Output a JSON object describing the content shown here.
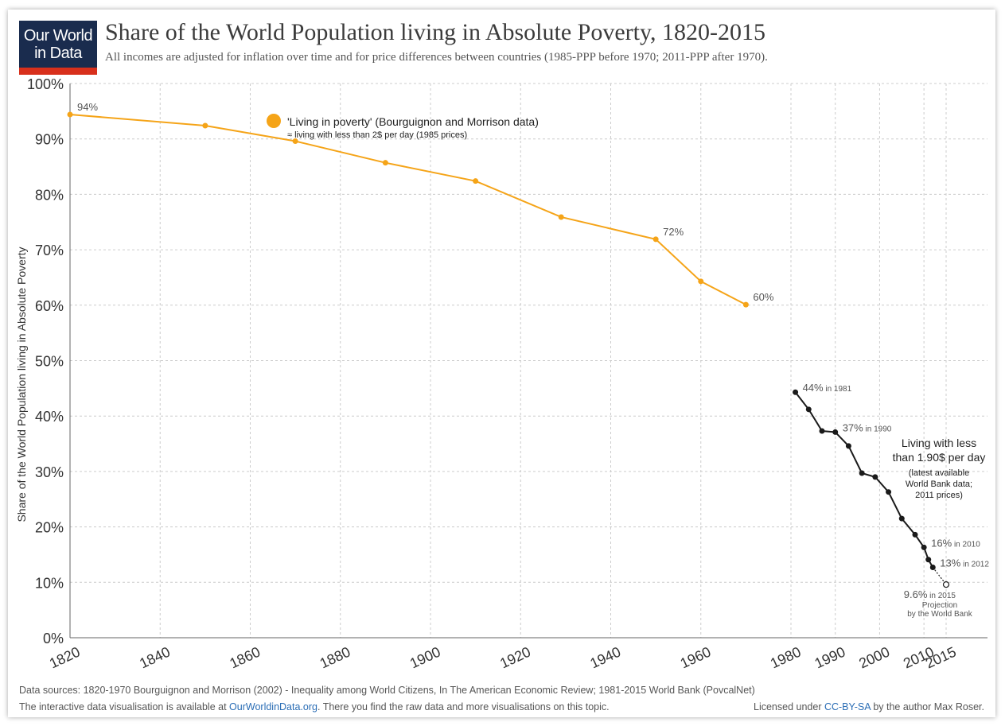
{
  "logo": {
    "line1": "Our World",
    "line2": "in Data"
  },
  "header": {
    "title": "Share of the World Population living in Absolute Poverty, 1820-2015",
    "subtitle": "All incomes are adjusted for inflation over time and for price differences between countries (1985-PPP before 1970; 2011-PPP after 1970)."
  },
  "colors": {
    "series1": "#f5a418",
    "series2": "#1a1a1a",
    "grid": "#cccccc",
    "link": "#2a6db5",
    "logo_bg": "#1a2c4e",
    "logo_bar": "#d8301c"
  },
  "chart_data": {
    "type": "line",
    "ylabel": "Share of the World Population living in Absolute Poverty",
    "ylim": [
      0,
      100
    ],
    "y_ticks": [
      "0%",
      "10%",
      "20%",
      "30%",
      "40%",
      "50%",
      "60%",
      "70%",
      "80%",
      "90%",
      "100%"
    ],
    "x_ticks": [
      "1820",
      "1840",
      "1860",
      "1880",
      "1900",
      "1920",
      "1940",
      "1960",
      "1980",
      "1990",
      "2000",
      "2010",
      "2015"
    ],
    "grid": true,
    "series": [
      {
        "name": "'Living in poverty' (Bourguignon and Morrison data)",
        "legend_sub": "≈ living with less than 2$ per day (1985 prices)",
        "points": [
          [
            1820,
            94.4
          ],
          [
            1850,
            92.4
          ],
          [
            1870,
            89.6
          ],
          [
            1890,
            85.7
          ],
          [
            1910,
            82.4
          ],
          [
            1929,
            75.9
          ],
          [
            1950,
            71.9
          ],
          [
            1960,
            64.3
          ],
          [
            1970,
            60.1
          ]
        ],
        "labels": [
          {
            "x": 1820,
            "y": 94.4,
            "text": "94%"
          },
          {
            "x": 1950,
            "y": 71.9,
            "text": "72%"
          },
          {
            "x": 1970,
            "y": 60.1,
            "text": "60%"
          }
        ]
      },
      {
        "annotation": [
          "Living with less",
          "than 1.90$ per day",
          "(latest available",
          "World Bank data;",
          "2011 prices)"
        ],
        "points": [
          [
            1981,
            44.3
          ],
          [
            1984,
            41.2
          ],
          [
            1987,
            37.3
          ],
          [
            1990,
            37.1
          ],
          [
            1993,
            34.6
          ],
          [
            1996,
            29.7
          ],
          [
            1999,
            29.0
          ],
          [
            2002,
            26.3
          ],
          [
            2005,
            21.5
          ],
          [
            2008,
            18.6
          ],
          [
            2010,
            16.3
          ],
          [
            2011,
            14.1
          ],
          [
            2012,
            12.7
          ]
        ],
        "projection": [
          [
            2012,
            12.7
          ],
          [
            2015,
            9.6
          ]
        ],
        "labels": [
          {
            "x": 1981,
            "y": 44.3,
            "big": "44%",
            "small": " in 1981"
          },
          {
            "x": 1990,
            "y": 37.1,
            "big": "37%",
            "small": " in 1990"
          },
          {
            "x": 2010,
            "y": 16.3,
            "big": "16%",
            "small": " in 2010"
          },
          {
            "x": 2012,
            "y": 12.7,
            "big": "13%",
            "small": " in 2012"
          },
          {
            "x": 2015,
            "y": 9.6,
            "big": "9.6%",
            "small": " in 2015"
          }
        ],
        "projection_note": [
          "Projection",
          "by the World Bank"
        ]
      }
    ]
  },
  "footer": {
    "sources": "Data sources: 1820-1970 Bourguignon and Morrison (2002) - Inequality among World Citizens, In The American Economic Review; 1981-2015 World Bank (PovcalNet)",
    "interactive_prefix": "The interactive data visualisation is available at ",
    "interactive_link": "OurWorldinData.org",
    "interactive_suffix": ". There you find the raw data and more visualisations on this topic.",
    "license_prefix": "Licensed under ",
    "license_link": "CC-BY-SA",
    "license_suffix": " by the author Max Roser."
  }
}
